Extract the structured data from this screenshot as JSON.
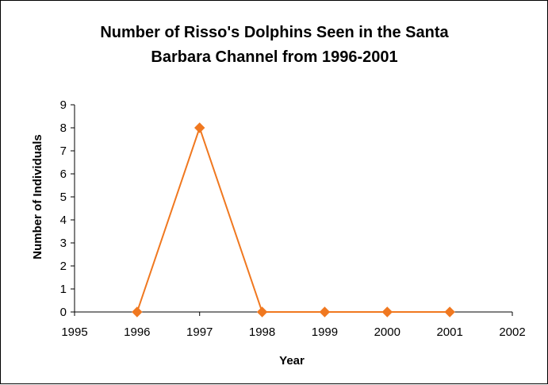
{
  "chart_data": {
    "type": "line",
    "title_lines": [
      "Number of Risso's Dolphins Seen in the Santa",
      "Barbara Channel from 1996-2001"
    ],
    "xlabel": "Year",
    "ylabel": "Number of Individuals",
    "xlim": [
      1995,
      2002
    ],
    "ylim": [
      0,
      9
    ],
    "x_ticks": [
      1995,
      1996,
      1997,
      1998,
      1999,
      2000,
      2001,
      2002
    ],
    "y_ticks": [
      0,
      1,
      2,
      3,
      4,
      5,
      6,
      7,
      8,
      9
    ],
    "grid": false,
    "legend": "none",
    "series": [
      {
        "x": [
          1996,
          1997,
          1998,
          1999,
          2000,
          2001
        ],
        "y": [
          0,
          8,
          0,
          0,
          0,
          0
        ],
        "color": "#F07820",
        "marker": "diamond"
      }
    ]
  }
}
